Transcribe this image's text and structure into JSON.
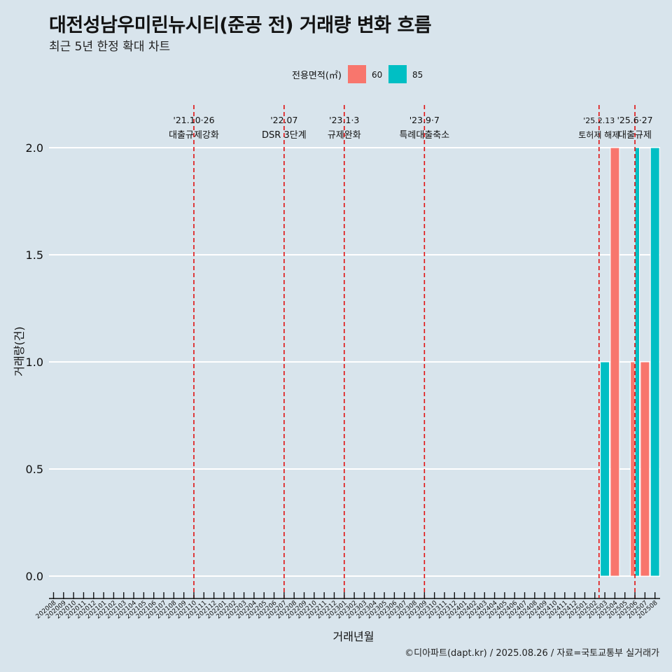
{
  "title": "대전성남우미린뉴시티(준공 전) 거래량 변화 흐름",
  "subtitle": "최근 5년 한정 확대 차트",
  "caption": "©디아파트(dapt.kr) / 2025.08.26 / 자료=국토교통부 실거래가",
  "chart_data": {
    "type": "bar",
    "xlabel": "거래년월",
    "ylabel": "거래량(건)",
    "ylim": [
      0,
      2.0
    ],
    "yticks": [
      "0.0",
      "0.5",
      "1.0",
      "1.5",
      "2.0"
    ],
    "legend": {
      "title": "전용면적(㎡)",
      "position": "top",
      "entries": [
        {
          "name": "60",
          "color": "#F8766D"
        },
        {
          "name": "85",
          "color": "#00BFC4"
        }
      ]
    },
    "categories": [
      "202008",
      "202009",
      "202010",
      "202011",
      "202012",
      "202101",
      "202102",
      "202103",
      "202104",
      "202105",
      "202106",
      "202107",
      "202108",
      "202109",
      "202110",
      "202111",
      "202112",
      "202201",
      "202202",
      "202203",
      "202204",
      "202205",
      "202206",
      "202207",
      "202208",
      "202209",
      "202210",
      "202211",
      "202212",
      "202301",
      "202302",
      "202303",
      "202304",
      "202305",
      "202306",
      "202307",
      "202308",
      "202309",
      "202310",
      "202311",
      "202312",
      "202401",
      "202402",
      "202403",
      "202404",
      "202405",
      "202406",
      "202407",
      "202408",
      "202409",
      "202410",
      "202411",
      "202412",
      "202501",
      "202502",
      "202503",
      "202504",
      "202505",
      "202506",
      "202507",
      "202508"
    ],
    "series": [
      {
        "name": "60",
        "color": "#F8766D",
        "points": [
          {
            "x": "202504",
            "y": 2
          },
          {
            "x": "202506",
            "y": 1
          },
          {
            "x": "202507",
            "y": 1
          }
        ]
      },
      {
        "name": "85",
        "color": "#00BFC4",
        "points": [
          {
            "x": "202503",
            "y": 1
          },
          {
            "x": "202506",
            "y": 2
          },
          {
            "x": "202508",
            "y": 2
          }
        ]
      }
    ],
    "events": [
      {
        "x": "202110",
        "date": "'21.10·26",
        "label": "대출규제강화"
      },
      {
        "x": "202207",
        "date": "'22.07",
        "label": "DSR 3단계"
      },
      {
        "x": "202301",
        "date": "'23.1·3",
        "label": "규제완화"
      },
      {
        "x": "202309",
        "date": "'23.9·7",
        "label": "특례대출축소"
      },
      {
        "x": "202502",
        "date": "'25.2.13",
        "label": "토허제 해제"
      },
      {
        "x": "202506",
        "date": "'25.6·27",
        "label": "대출규제"
      }
    ]
  }
}
